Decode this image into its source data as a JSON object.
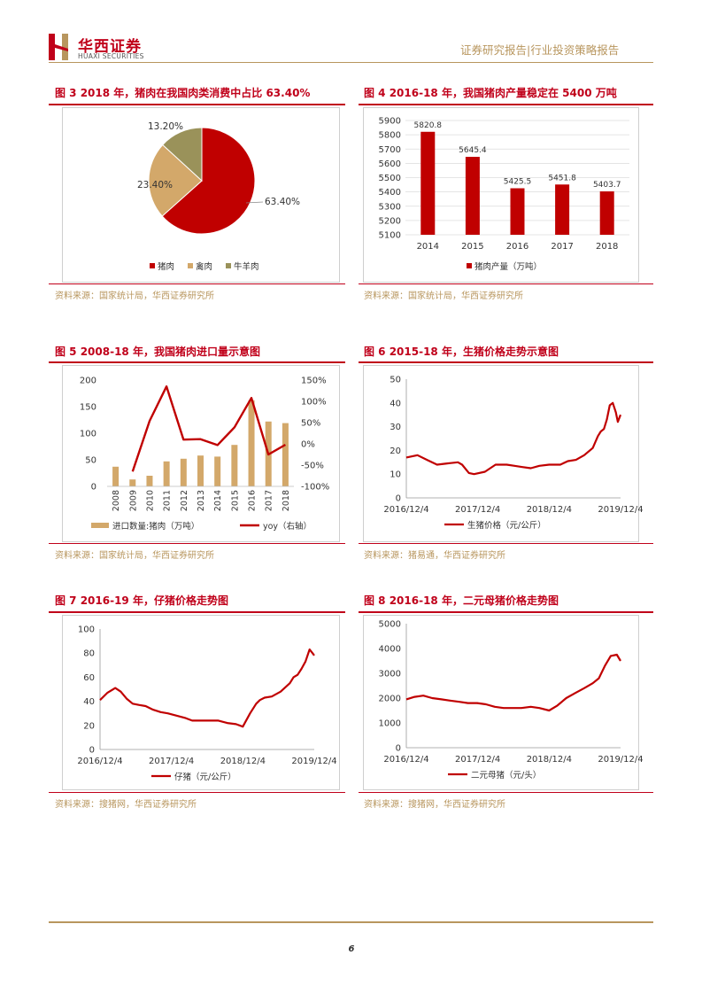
{
  "header": {
    "logo_cn": "华西证券",
    "logo_en": "HUAXI SECURITIES",
    "report_type": "证券研究报告|行业投资策略报告"
  },
  "figures": [
    {
      "title": "图 3   2018 年，猪肉在我国肉类消费中占比 63.40%",
      "source": "资料来源：国家统计局，华西证券研究所",
      "chart_data": {
        "type": "pie",
        "labels": [
          "猪肉",
          "禽肉",
          "牛羊肉"
        ],
        "values": [
          63.4,
          23.4,
          13.2
        ],
        "data_labels": [
          "63.40%",
          "23.40%",
          "13.20%"
        ],
        "colors": [
          "#c00000",
          "#d3a86a",
          "#9a925a"
        ],
        "legend": "bottom"
      }
    },
    {
      "title": "图 4   2016-18 年，我国猪肉产量稳定在 5400 万吨",
      "source": "资料来源：国家统计局，华西证券研究所",
      "chart_data": {
        "type": "bar",
        "categories": [
          "2014",
          "2015",
          "2016",
          "2017",
          "2018"
        ],
        "series": [
          {
            "name": "猪肉产量（万吨）",
            "values": [
              5820.8,
              5645.4,
              5425.5,
              5451.8,
              5403.7
            ]
          }
        ],
        "data_labels": [
          "5820.8",
          "5645.4",
          "5425.5",
          "5451.8",
          "5403.7"
        ],
        "ylim": [
          5100,
          5900
        ],
        "yticks": [
          "5100",
          "5200",
          "5300",
          "5400",
          "5500",
          "5600",
          "5700",
          "5800",
          "5900"
        ],
        "color": "#c00000",
        "legend": "bottom"
      }
    },
    {
      "title": "图 5   2008-18 年，我国猪肉进口量示意图",
      "source": "资料来源：国家统计局，华西证券研究所",
      "chart_data": {
        "type": "bar",
        "categories": [
          "2008",
          "2009",
          "2010",
          "2011",
          "2012",
          "2013",
          "2014",
          "2015",
          "2016",
          "2017",
          "2018"
        ],
        "series": [
          {
            "name": "进口数量:猪肉（万吨）",
            "type": "bar",
            "axis": "left",
            "values": [
              37,
              13,
              20,
              47,
              52,
              58,
              56,
              78,
              162,
              122,
              119
            ]
          },
          {
            "name": "yoy（右轴）",
            "type": "line",
            "axis": "right",
            "values": [
              null,
              -65,
              54,
              135,
              10,
              11,
              -3,
              39,
              108,
              -25,
              -2
            ]
          }
        ],
        "ylim": [
          0,
          200
        ],
        "yticks": [
          "0",
          "50",
          "100",
          "150",
          "200"
        ],
        "y2lim": [
          -100,
          150
        ],
        "y2ticks": [
          "-100%",
          "-50%",
          "0%",
          "50%",
          "100%",
          "150%"
        ],
        "colors": {
          "bar": "#d3a86a",
          "line": "#c00000"
        },
        "legend": "bottom"
      }
    },
    {
      "title": "图 6   2015-18 年，生猪价格走势示意图",
      "source": "资料来源：猪易通，华西证券研究所",
      "chart_data": {
        "type": "line",
        "series": [
          {
            "name": "生猪价格（元/公斤）",
            "x": [
              "2016/12/4",
              "2017/1/30",
              "2017/3/20",
              "2017/5/10",
              "2017/7/1",
              "2017/8/25",
              "2017/9/15",
              "2017/10/20",
              "2017/11/15",
              "2018/1/10",
              "2018/3/5",
              "2018/5/1",
              "2018/6/10",
              "2018/7/20",
              "2018/9/1",
              "2018/10/15",
              "2018/12/4",
              "2019/1/30",
              "2019/3/10",
              "2019/4/20",
              "2019/6/1",
              "2019/7/15",
              "2019/8/10",
              "2019/8/25",
              "2019/9/10",
              "2019/9/25",
              "2019/10/10",
              "2019/10/25",
              "2019/11/10",
              "2019/11/20",
              "2019/12/4"
            ],
            "values": [
              17,
              18,
              16,
              14,
              14.5,
              15,
              14,
              10.5,
              10,
              11,
              14,
              14,
              13.5,
              13,
              12.5,
              13.5,
              14,
              14,
              15.5,
              16,
              18,
              21,
              26,
              28,
              29,
              33,
              39,
              40,
              36,
              32,
              35
            ]
          }
        ],
        "ylim": [
          0,
          50
        ],
        "yticks": [
          "0",
          "10",
          "20",
          "30",
          "40",
          "50"
        ],
        "xticks": [
          "2016/12/4",
          "2017/12/4",
          "2018/12/4",
          "2019/12/4"
        ],
        "color": "#c00000",
        "legend": "bottom"
      }
    },
    {
      "title": "图 7   2016-19 年，仔猪价格走势图",
      "source": "资料来源：搜猪网，华西证券研究所",
      "chart_data": {
        "type": "line",
        "series": [
          {
            "name": "仔猪（元/公斤）",
            "x": [
              "2016/12/4",
              "2017/1/10",
              "2017/2/20",
              "2017/3/20",
              "2017/4/20",
              "2017/5/20",
              "2017/6/20",
              "2017/7/25",
              "2017/9/1",
              "2017/10/10",
              "2017/11/15",
              "2018/1/1",
              "2018/2/15",
              "2018/3/20",
              "2018/5/1",
              "2018/6/15",
              "2018/8/1",
              "2018/9/15",
              "2018/10/30",
              "2018/12/4",
              "2019/1/10",
              "2019/2/10",
              "2019/3/1",
              "2019/3/25",
              "2019/5/1",
              "2019/6/15",
              "2019/8/1",
              "2019/8/20",
              "2019/9/10",
              "2019/9/30",
              "2019/10/20",
              "2019/11/10",
              "2019/11/25",
              "2019/12/4"
            ],
            "values": [
              41,
              47,
              51,
              48,
              42,
              38,
              37,
              36,
              33,
              31,
              30,
              28,
              26,
              24,
              24,
              24,
              24,
              22,
              21,
              19,
              30,
              38,
              41,
              43,
              44,
              48,
              55,
              60,
              62,
              67,
              73,
              83,
              80,
              78
            ]
          }
        ],
        "ylim": [
          0,
          100
        ],
        "yticks": [
          "0",
          "20",
          "40",
          "60",
          "80",
          "100"
        ],
        "xticks": [
          "2016/12/4",
          "2017/12/4",
          "2018/12/4",
          "2019/12/4"
        ],
        "color": "#c00000",
        "legend": "bottom"
      }
    },
    {
      "title": "图 8   2016-18 年，二元母猪价格走势图",
      "source": "资料来源：搜猪网，华西证券研究所",
      "chart_data": {
        "type": "line",
        "series": [
          {
            "name": "二元母猪（元/头）",
            "x": [
              "2016/12/4",
              "2017/1/15",
              "2017/3/1",
              "2017/4/15",
              "2017/6/1",
              "2017/7/15",
              "2017/9/1",
              "2017/10/15",
              "2017/12/1",
              "2018/1/15",
              "2018/3/1",
              "2018/4/15",
              "2018/6/1",
              "2018/7/15",
              "2018/9/1",
              "2018/10/15",
              "2018/12/4",
              "2019/1/15",
              "2019/3/1",
              "2019/4/15",
              "2019/6/1",
              "2019/7/15",
              "2019/8/15",
              "2019/9/15",
              "2019/10/15",
              "2019/11/15",
              "2019/12/4"
            ],
            "values": [
              1950,
              2050,
              2100,
              2000,
              1950,
              1900,
              1850,
              1800,
              1800,
              1750,
              1650,
              1600,
              1600,
              1600,
              1650,
              1600,
              1500,
              1700,
              2000,
              2200,
              2400,
              2600,
              2800,
              3300,
              3700,
              3750,
              3500
            ]
          }
        ],
        "ylim": [
          0,
          5000
        ],
        "yticks": [
          "0",
          "1000",
          "2000",
          "3000",
          "4000",
          "5000"
        ],
        "xticks": [
          "2016/12/4",
          "2017/12/4",
          "2018/12/4",
          "2019/12/4"
        ],
        "color": "#c00000",
        "legend": "bottom"
      }
    }
  ],
  "footer": {
    "page_number": "6"
  }
}
